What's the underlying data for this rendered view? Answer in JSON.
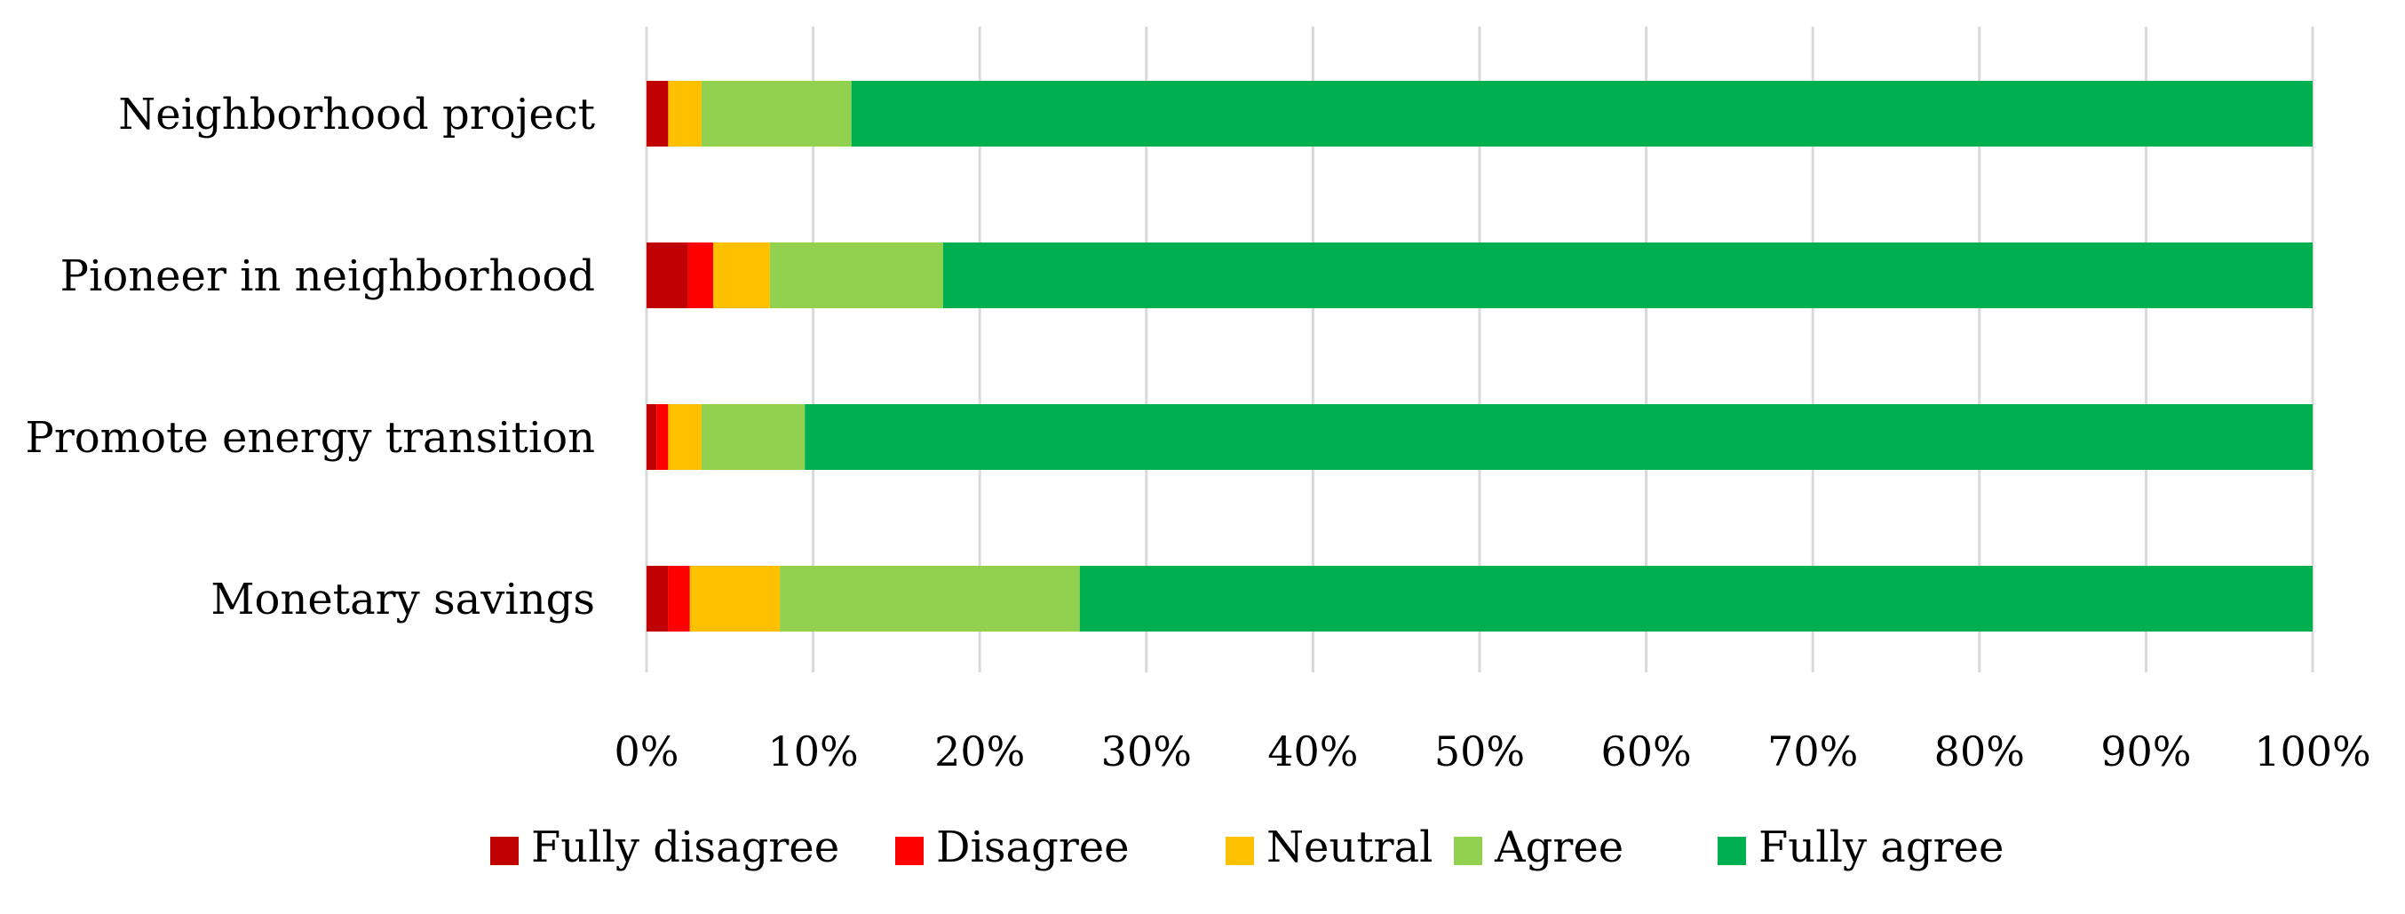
{
  "chart_data": {
    "type": "bar",
    "orientation": "horizontal",
    "stacked": true,
    "percent_stacked": true,
    "categories": [
      "Neighborhood project",
      "Pioneer in neighborhood",
      "Promote energy transition",
      "Monetary savings"
    ],
    "series": [
      {
        "name": "Fully disagree",
        "color": "#c00000",
        "values": [
          1.3,
          2.5,
          0.6,
          1.3
        ]
      },
      {
        "name": "Disagree",
        "color": "#ff0000",
        "values": [
          0.0,
          1.5,
          0.7,
          1.3
        ]
      },
      {
        "name": "Neutral",
        "color": "#ffc000",
        "values": [
          2.0,
          3.4,
          2.0,
          5.4
        ]
      },
      {
        "name": "Agree",
        "color": "#92d050",
        "values": [
          9.0,
          10.4,
          6.2,
          18.0
        ]
      },
      {
        "name": "Fully agree",
        "color": "#00b050",
        "values": [
          87.7,
          82.2,
          90.5,
          74.0
        ]
      }
    ],
    "xlim": [
      0,
      100
    ],
    "x_ticks": [
      0,
      10,
      20,
      30,
      40,
      50,
      60,
      70,
      80,
      90,
      100
    ],
    "x_tick_labels": [
      "0%",
      "10%",
      "20%",
      "30%",
      "40%",
      "50%",
      "60%",
      "70%",
      "80%",
      "90%",
      "100%"
    ],
    "grid": true,
    "legend_position": "bottom",
    "title": "",
    "xlabel": "",
    "ylabel": ""
  }
}
